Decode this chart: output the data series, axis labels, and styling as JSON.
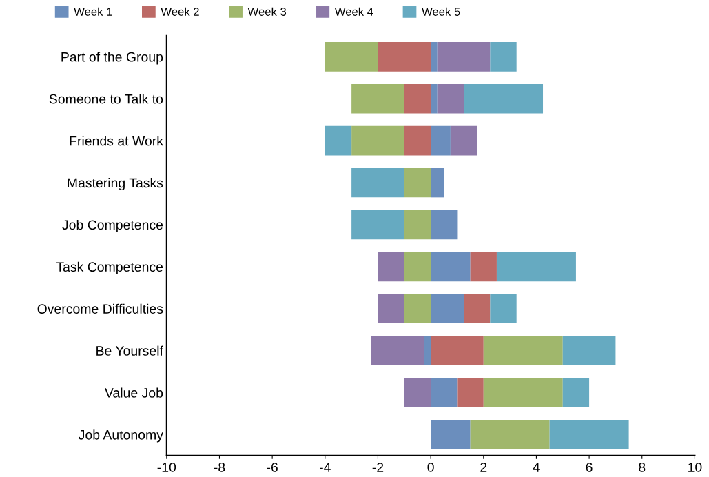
{
  "chart_data": {
    "type": "bar",
    "orientation": "horizontal",
    "stacked": true,
    "categories": [
      "Part of the Group",
      "Someone to Talk to",
      "Friends at Work",
      "Mastering Tasks",
      "Job Competence",
      "Task Competence",
      "Overcome Difficulties",
      "Be Yourself",
      "Value Job",
      "Job Autonomy"
    ],
    "series": [
      {
        "name": "Week 1",
        "color": "#6b8ebd",
        "values": [
          0.25,
          0.25,
          0.75,
          0.5,
          1,
          1.5,
          1.25,
          -0.25,
          1,
          1.5
        ]
      },
      {
        "name": "Week 2",
        "color": "#bd6a66",
        "values": [
          -2,
          -1,
          -1,
          null,
          null,
          1,
          1,
          2,
          1,
          null
        ]
      },
      {
        "name": "Week 3",
        "color": "#a0b76c",
        "values": [
          -2,
          -2,
          -2,
          -1,
          -1,
          -1,
          -1,
          3,
          3,
          3
        ]
      },
      {
        "name": "Week 4",
        "color": "#8d79a8",
        "values": [
          2,
          1,
          1,
          null,
          null,
          -1,
          -1,
          -2,
          -1,
          null
        ]
      },
      {
        "name": "Week 5",
        "color": "#66aac1",
        "values": [
          1,
          3,
          -1,
          -2,
          -2,
          3,
          1,
          2,
          1,
          3
        ]
      }
    ],
    "xlim": [
      -10,
      10
    ],
    "xticks": [
      -10,
      -8,
      -6,
      -4,
      -2,
      0,
      2,
      4,
      6,
      8,
      10
    ],
    "grid": false,
    "legend": "top left"
  }
}
